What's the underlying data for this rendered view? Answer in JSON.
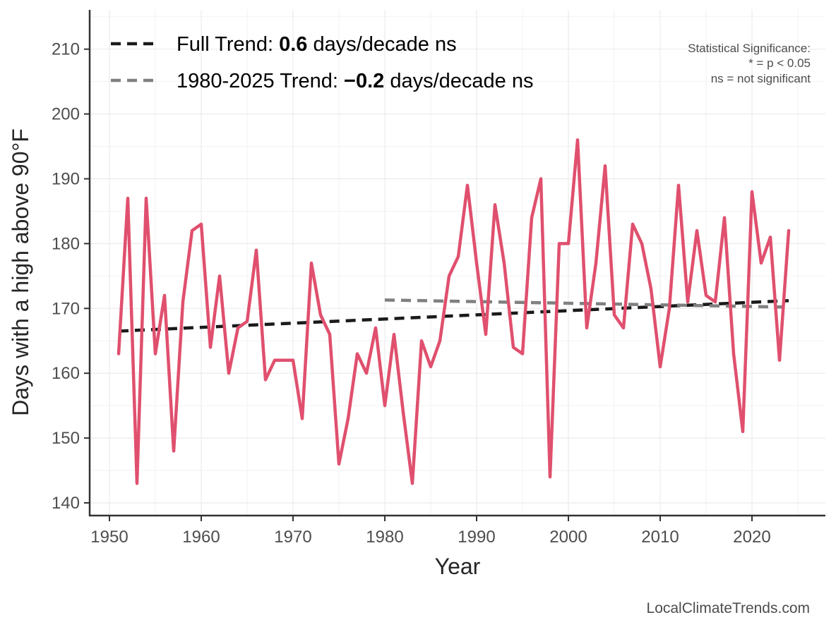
{
  "chart_data": {
    "type": "line",
    "title": "",
    "xlabel": "Year",
    "ylabel": "Days with a high above 90°F",
    "xlim": [
      1947.5,
      2027.5
    ],
    "ylim": [
      138,
      216
    ],
    "x_ticks": [
      1950,
      1960,
      1970,
      1980,
      1990,
      2000,
      2010,
      2020
    ],
    "y_ticks": [
      140,
      150,
      160,
      170,
      180,
      190,
      200,
      210
    ],
    "grid": true,
    "series": [
      {
        "name": "Days above 90°F",
        "color": "#e0506e",
        "x": [
          1951,
          1952,
          1953,
          1954,
          1955,
          1956,
          1957,
          1958,
          1959,
          1960,
          1961,
          1962,
          1963,
          1964,
          1965,
          1966,
          1967,
          1968,
          1969,
          1970,
          1971,
          1972,
          1973,
          1974,
          1975,
          1976,
          1977,
          1978,
          1979,
          1980,
          1981,
          1982,
          1983,
          1984,
          1985,
          1986,
          1987,
          1988,
          1989,
          1990,
          1991,
          1992,
          1993,
          1994,
          1995,
          1996,
          1997,
          1998,
          1999,
          2000,
          2001,
          2002,
          2003,
          2004,
          2005,
          2006,
          2007,
          2008,
          2009,
          2010,
          2011,
          2012,
          2013,
          2014,
          2015,
          2016,
          2017,
          2018,
          2019,
          2020,
          2021,
          2022,
          2023,
          2024
        ],
        "values": [
          163,
          187,
          143,
          187,
          163,
          172,
          148,
          171,
          182,
          183,
          164,
          175,
          160,
          167,
          168,
          179,
          159,
          162,
          162,
          162,
          153,
          177,
          169,
          166,
          146,
          153,
          163,
          160,
          167,
          155,
          166,
          154,
          143,
          165,
          161,
          165,
          175,
          178,
          189,
          177,
          166,
          186,
          177,
          164,
          163,
          184,
          190,
          144,
          180,
          180,
          196,
          167,
          177,
          192,
          169,
          167,
          183,
          180,
          173,
          161,
          170,
          189,
          171,
          182,
          172,
          171,
          184,
          163,
          151,
          188,
          177,
          181,
          162,
          182
        ]
      }
    ],
    "trends": [
      {
        "name": "Full Trend",
        "color": "#1a1a1a",
        "x": [
          1951,
          2024
        ],
        "values": [
          166.5,
          171.2
        ]
      },
      {
        "name": "1980-2025 Trend",
        "color": "#808080",
        "x": [
          1980,
          2024
        ],
        "values": [
          171.3,
          170.2
        ]
      }
    ],
    "legend": [
      {
        "prefix": "Full Trend: ",
        "value": "0.6",
        "suffix": " days/decade ns",
        "color": "#1a1a1a"
      },
      {
        "prefix": "1980-2025 Trend: ",
        "value": "−0.2",
        "suffix": " days/decade ns",
        "color": "#808080"
      }
    ],
    "significance_note": [
      "Statistical Significance:",
      "* = p < 0.05",
      "ns = not significant"
    ],
    "source": "LocalClimateTrends.com"
  }
}
